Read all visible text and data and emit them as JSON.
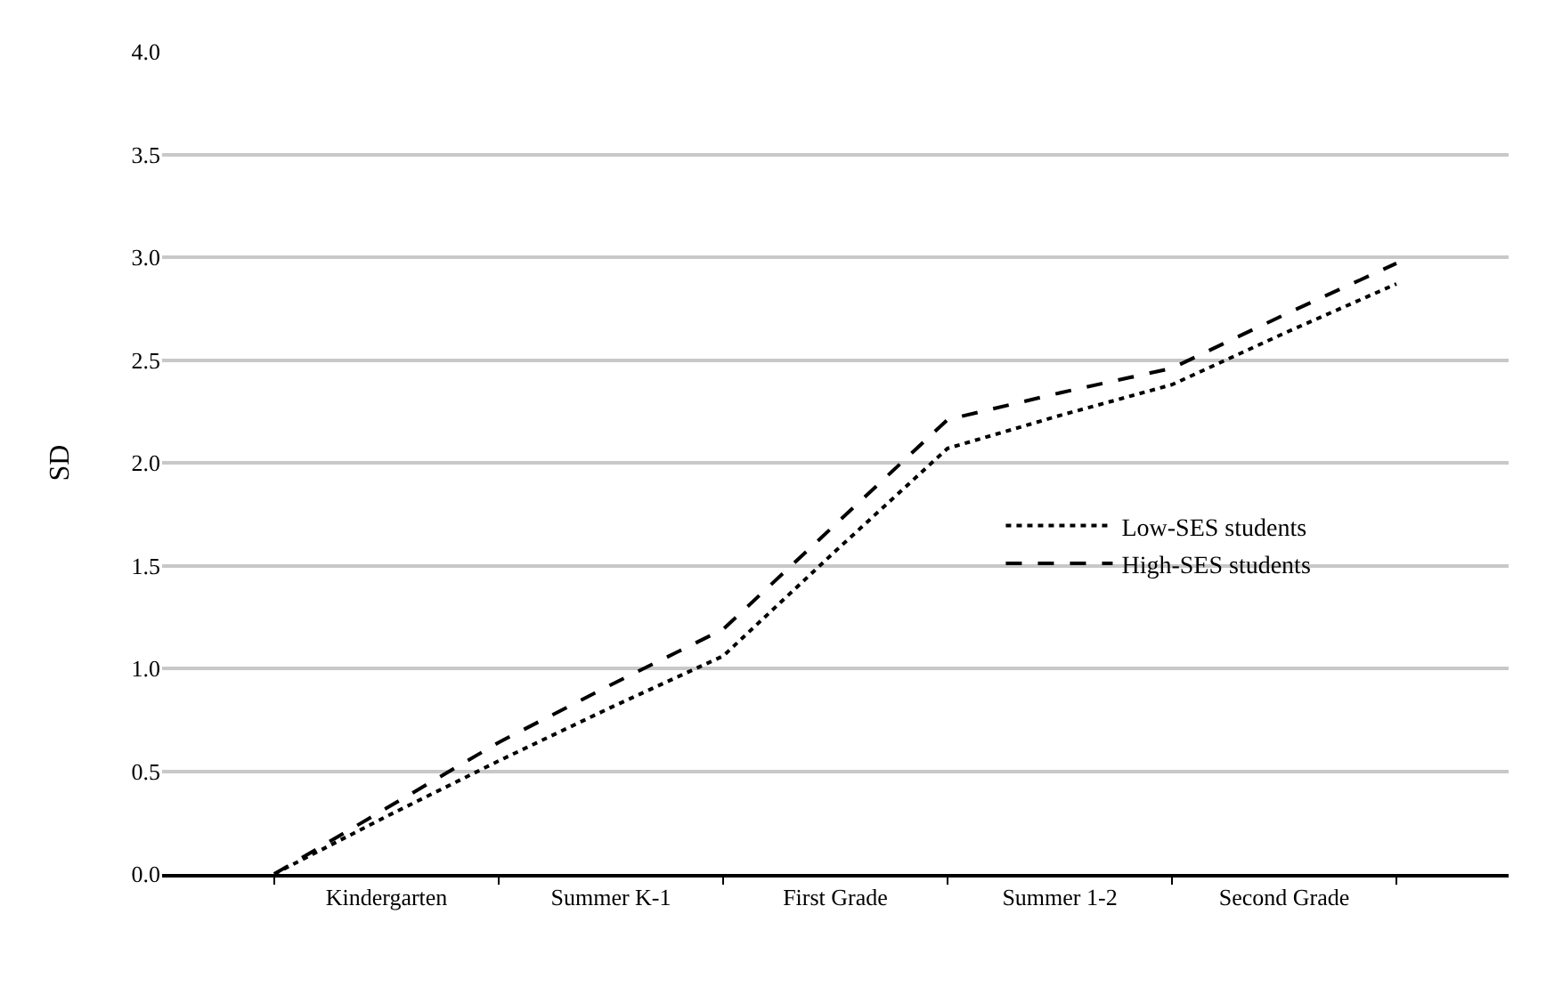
{
  "chart_data": {
    "type": "line",
    "ylabel": "SD",
    "categories": [
      null,
      "Kindergarten",
      null,
      "Summer K-1",
      null,
      "First Grade",
      null,
      "Summer 1-2",
      null,
      "Second Grade",
      null
    ],
    "ylim": [
      0,
      4
    ],
    "yticks": [
      {
        "value": 0,
        "label": "0.0"
      },
      {
        "value": 0.5,
        "label": "0.5"
      },
      {
        "value": 1,
        "label": "1.0"
      },
      {
        "value": 1.5,
        "label": "1.5"
      },
      {
        "value": 2,
        "label": "2.0"
      },
      {
        "value": 2.5,
        "label": "2.5"
      },
      {
        "value": 3,
        "label": "3.0"
      },
      {
        "value": 3.5,
        "label": "3.5"
      },
      {
        "value": 4,
        "label": "4.0"
      }
    ],
    "grid": "y",
    "legend": "right",
    "marker": "none",
    "series": [
      {
        "name": "Low-SES students",
        "color": "#000000",
        "line_style": "dotted",
        "values": [
          0,
          0.28,
          0.55,
          0.81,
          1.06,
          1.57,
          2.07,
          2.23,
          2.38,
          2.63,
          2.87
        ]
      },
      {
        "name": "High-SES students",
        "color": "#000000",
        "line_style": "dashed",
        "values": [
          0,
          0.32,
          0.64,
          0.92,
          1.19,
          1.7,
          2.21,
          2.34,
          2.46,
          2.72,
          2.97
        ]
      }
    ]
  }
}
